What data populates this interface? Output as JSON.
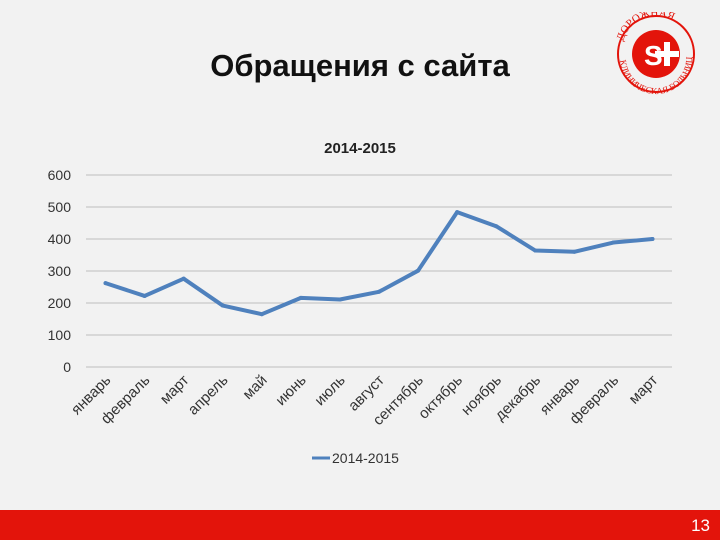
{
  "slide": {
    "title": "Обращения с сайта",
    "page_number": "13",
    "logo_text_top": "ДОРОЖНАЯ",
    "logo_text_bottom": "КЛИНИЧЕСКАЯ БОЛЬНИЦА"
  },
  "colors": {
    "accent": "#e3140b",
    "series": "#4f81bd",
    "grid": "#bfbfbf"
  },
  "chart_data": {
    "type": "line",
    "title": "2014-2015",
    "categories": [
      "январь",
      "февраль",
      "март",
      "апрель",
      "май",
      "июнь",
      "июль",
      "август",
      "сентябрь",
      "октябрь",
      "ноябрь",
      "декабрь",
      "январь",
      "февраль",
      "март"
    ],
    "series": [
      {
        "name": "2014-2015",
        "values": [
          262,
          222,
          276,
          192,
          165,
          216,
          211,
          235,
          301,
          484,
          440,
          364,
          360,
          389,
          400
        ]
      }
    ],
    "ylim": [
      0,
      600
    ],
    "yticks": [
      "0",
      "100",
      "200",
      "300",
      "400",
      "500",
      "600"
    ],
    "grid": true,
    "legend": "bottom",
    "xlabel": "",
    "ylabel": ""
  }
}
